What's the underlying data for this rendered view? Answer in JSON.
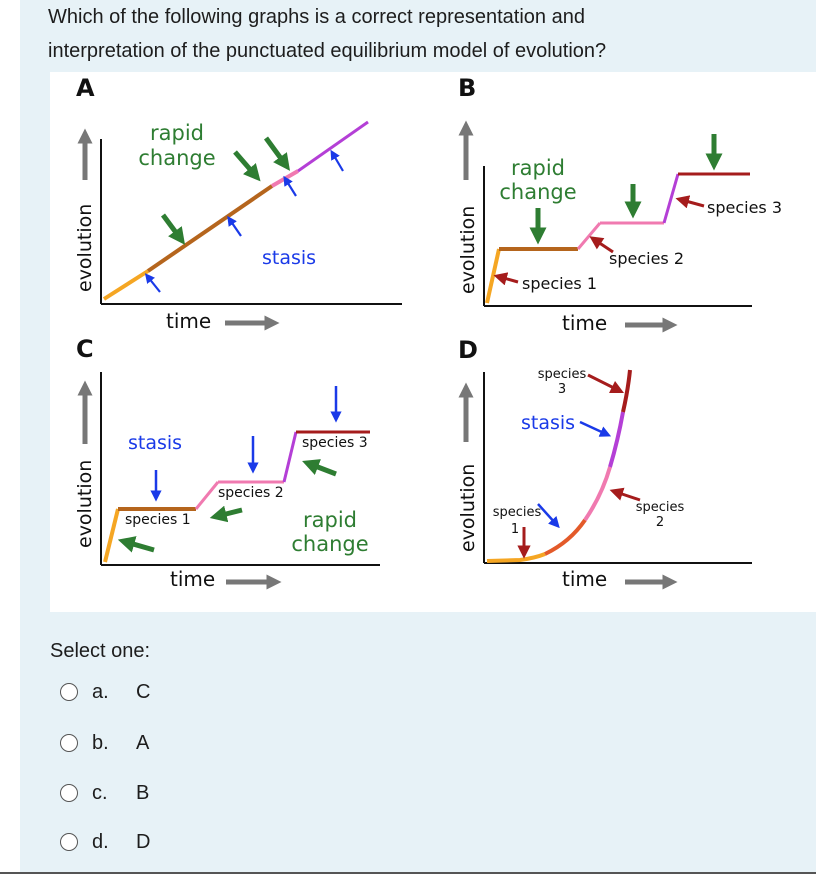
{
  "question": {
    "line1": "Which of the following graphs is a correct representation and",
    "line2": "interpretation of the punctuated equilibrium model of evolution?"
  },
  "figure": {
    "panelA": {
      "letter": "A",
      "ylabel": "evolution",
      "xlabel": "time",
      "rapid1": "rapid",
      "rapid2": "change",
      "stasis": "stasis"
    },
    "panelB": {
      "letter": "B",
      "ylabel": "evolution",
      "xlabel": "time",
      "rapid1": "rapid",
      "rapid2": "change",
      "species1": "species 1",
      "species2": "species 2",
      "species3": "species 3"
    },
    "panelC": {
      "letter": "C",
      "ylabel": "evolution",
      "xlabel": "time",
      "stasis": "stasis",
      "rapid1": "rapid",
      "rapid2": "change",
      "species1": "species 1",
      "species2": "species 2",
      "species3": "species 3"
    },
    "panelD": {
      "letter": "D",
      "ylabel": "evolution",
      "xlabel": "time",
      "stasis": "stasis",
      "sp3a": "species",
      "sp3b": "3",
      "sp1a": "species",
      "sp1b": "1",
      "sp2a": "species",
      "sp2b": "2"
    },
    "colors": {
      "orange": "#f5a623",
      "brown": "#b5651d",
      "pink": "#f07ab0",
      "purple": "#b43fd6",
      "darkred": "#a51c1c",
      "green": "#2e7d32",
      "blue": "#1a3ae8",
      "axis": "#111111",
      "arrow_gray": "#777777"
    }
  },
  "select_label": "Select one:",
  "options": [
    {
      "letter": "a.",
      "text": "C"
    },
    {
      "letter": "b.",
      "text": "A"
    },
    {
      "letter": "c.",
      "text": "B"
    },
    {
      "letter": "d.",
      "text": "D"
    }
  ]
}
